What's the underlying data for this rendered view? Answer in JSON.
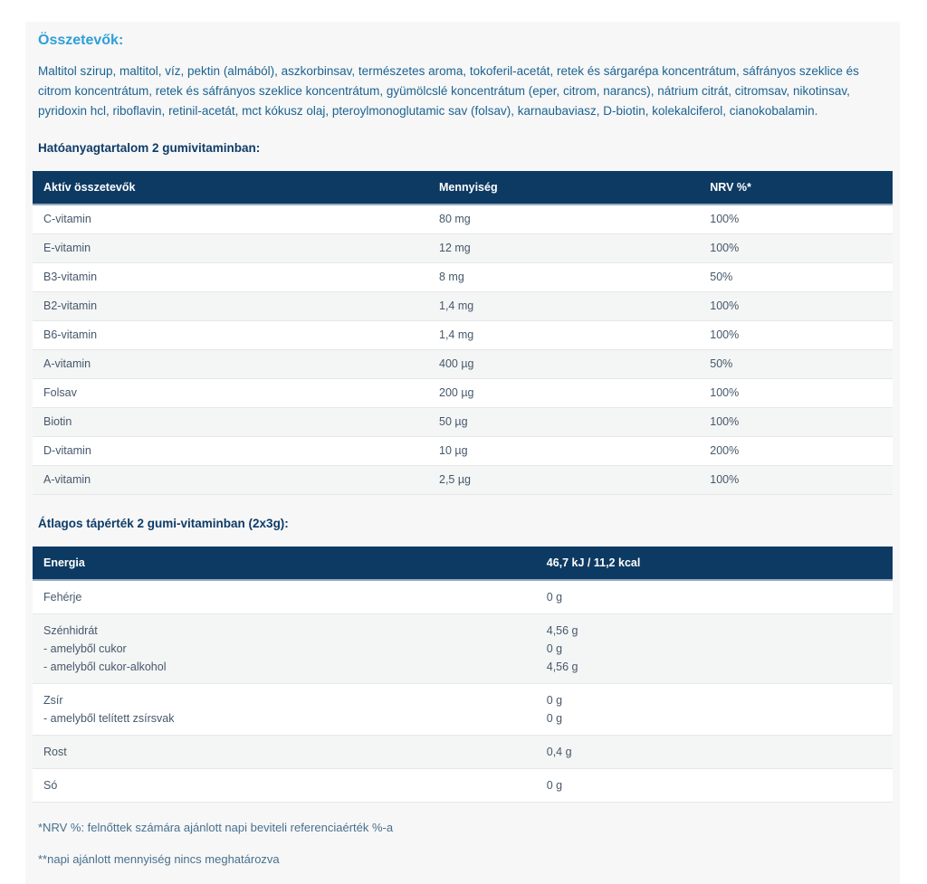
{
  "page": {
    "ingredients_heading": "Összetevők:",
    "ingredients_text": "Maltitol szirup, maltitol, víz, pektin (almából), aszkorbinsav, természetes aroma, tokoferil-acetát, retek és sárgarépa koncentrátum, sáfrányos szeklice és citrom koncentrátum, retek és sáfrányos szeklice koncentrátum, gyümölcslé koncentrátum (eper, citrom, narancs), nátrium citrát, citromsav, nikotinsav, pyridoxin hcl, riboflavin, retinil-acetát, mct kókusz olaj, pteroylmonoglutamic sav (folsav), karnaubaviasz, D-biotin, kolekalciferol, cianokobalamin.",
    "actives_heading": "Hatóanyagtartalom 2 gumivitaminban:",
    "nutrition_heading": "Átlagos tápérték 2 gumi-vitaminban (2x3g):",
    "footnote_nrv": "*NRV %: felnőttek számára ajánlott napi beviteli referenciaérték %-a",
    "footnote_daily": "**napi ajánlott mennyiség nincs meghatározva"
  },
  "actives_table": {
    "headers": [
      "Aktív összetevők",
      "Mennyiség",
      "NRV %*"
    ],
    "rows": [
      [
        "C-vitamin",
        "80 mg",
        "100%"
      ],
      [
        "E-vitamin",
        "12 mg",
        "100%"
      ],
      [
        "B3-vitamin",
        "8 mg",
        "50%"
      ],
      [
        "B2-vitamin",
        "1,4 mg",
        "100%"
      ],
      [
        "B6-vitamin",
        "1,4 mg",
        "100%"
      ],
      [
        "A-vitamin",
        "400 µg",
        "50%"
      ],
      [
        "Folsav",
        "200 µg",
        "100%"
      ],
      [
        "Biotin",
        "50 µg",
        "100%"
      ],
      [
        "D-vitamin",
        "10 µg",
        "200%"
      ],
      [
        "A-vitamin",
        "2,5 µg",
        "100%"
      ]
    ]
  },
  "nutrition_table": {
    "headers": [
      "Energia",
      "46,7 kJ / 11,2 kcal"
    ],
    "rows": [
      {
        "lines": [
          [
            "Fehérje",
            "0 g"
          ]
        ]
      },
      {
        "lines": [
          [
            "Szénhidrát",
            "4,56 g"
          ],
          [
            "- amelyből cukor",
            "0 g"
          ],
          [
            "- amelyből cukor-alkohol",
            "4,56 g"
          ]
        ]
      },
      {
        "lines": [
          [
            "Zsír",
            "0 g"
          ],
          [
            "- amelyből telített zsírsvak",
            "0 g"
          ]
        ]
      },
      {
        "lines": [
          [
            "Rost",
            "0,4 g"
          ]
        ]
      },
      {
        "lines": [
          [
            "Só",
            "0 g"
          ]
        ]
      }
    ]
  },
  "colors": {
    "accent_light_blue": "#2e9fd8",
    "body_text_blue": "#1b6392",
    "heading_navy": "#0e3c68",
    "table_header_bg": "#0d3a63",
    "table_row_text": "#46586b",
    "panel_bg": "#f7f7f7",
    "alt_row_bg": "#f4f5f5"
  }
}
